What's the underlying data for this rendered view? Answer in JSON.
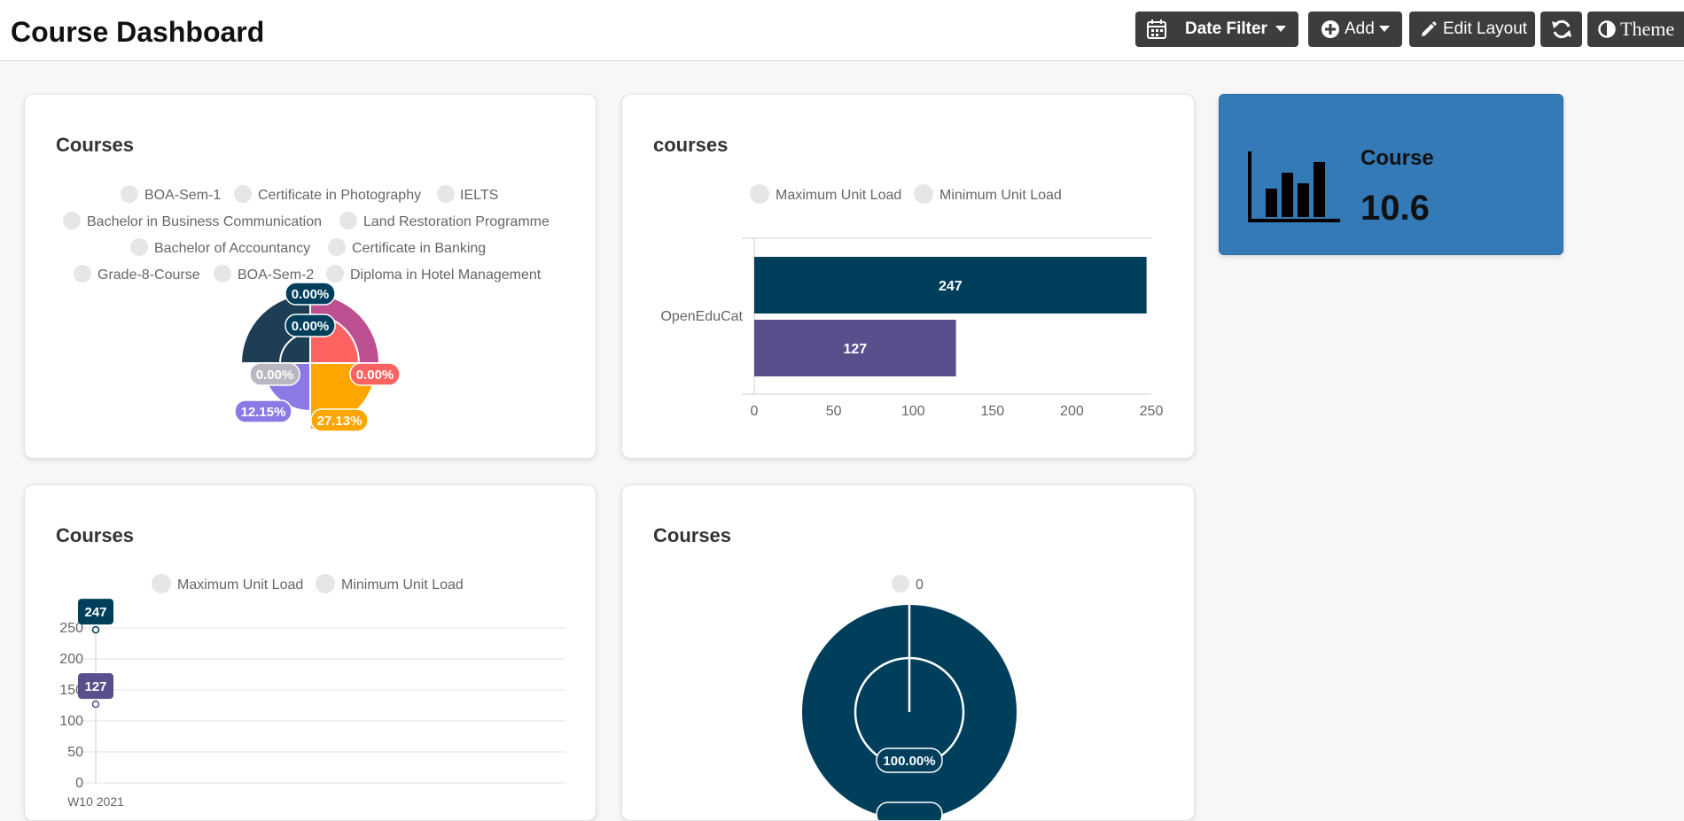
{
  "header": {
    "title": "Course Dashboard",
    "date_filter_label": "Date Filter",
    "add_label": "Add",
    "edit_layout_label": "Edit Layout",
    "theme_label": "Theme"
  },
  "colors": {
    "navy": "#003f5c",
    "purple": "#58508d",
    "magenta": "#bc5090",
    "coral": "#ff6361",
    "orange": "#ffa600",
    "dark_slate": "#1d3e55",
    "lavender": "#8a7ae6",
    "grey": "#b8b8c0",
    "kpi_bg": "#337ab7"
  },
  "card1": {
    "title": "Courses",
    "legend": [
      [
        "BOA-Sem-1",
        "Certificate in Photography",
        "IELTS"
      ],
      [
        "Bachelor in Business Communication",
        "Land Restoration Programme"
      ],
      [
        "Bachelor of Accountancy",
        "Certificate in Banking"
      ],
      [
        "Grade-8-Course",
        "BOA-Sem-2",
        "Diploma in Hotel Management"
      ]
    ],
    "labels": [
      "0.00%",
      "0.00%",
      "0.00%",
      "0.00%",
      "12.15%",
      "27.13%"
    ]
  },
  "card2": {
    "title": "courses",
    "legend": [
      "Maximum Unit Load",
      "Minimum Unit Load"
    ]
  },
  "card3": {
    "title": "Courses",
    "legend": [
      "Maximum Unit Load",
      "Minimum Unit Load"
    ]
  },
  "card4": {
    "title": "Courses",
    "legend": [
      "0"
    ],
    "labels": [
      "100.00%"
    ]
  },
  "kpi": {
    "title": "Course",
    "value": "10.6",
    "icon": "bar-chart-icon"
  },
  "chart_data": [
    {
      "type": "bar",
      "orientation": "horizontal",
      "title": "courses",
      "categories": [
        "OpenEduCat"
      ],
      "series": [
        {
          "name": "Maximum Unit Load",
          "values": [
            247
          ],
          "color": "#003f5c"
        },
        {
          "name": "Minimum Unit Load",
          "values": [
            127
          ],
          "color": "#58508d"
        }
      ],
      "xlim": [
        0,
        250
      ],
      "xticks": [
        "0",
        "50",
        "100",
        "150",
        "200",
        "250"
      ],
      "legend": "top"
    },
    {
      "type": "line",
      "title": "Courses",
      "x": [
        "W10 2021"
      ],
      "series": [
        {
          "name": "Maximum Unit Load",
          "values": [
            247
          ],
          "color": "#003f5c"
        },
        {
          "name": "Minimum Unit Load",
          "values": [
            127
          ],
          "color": "#58508d"
        }
      ],
      "ylim": [
        0,
        250
      ],
      "yticks": [
        "0",
        "50",
        "100",
        "150",
        "200",
        "250"
      ],
      "grid": true,
      "legend": "top"
    },
    {
      "type": "pie",
      "title": "Courses",
      "categories": [
        "0"
      ],
      "values": [
        100
      ],
      "labels": [
        "100.00%"
      ],
      "legend": "top"
    }
  ]
}
